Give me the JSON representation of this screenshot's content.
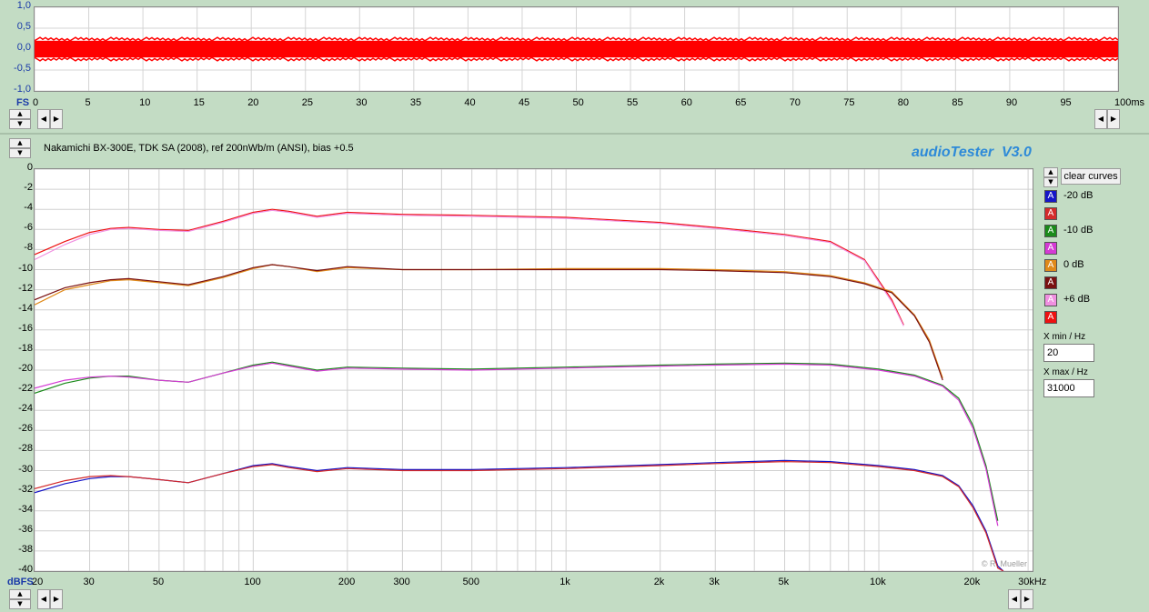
{
  "top_panel": {
    "y_tick_labels": [
      "1,0",
      "0,5",
      "0,0",
      "-0,5",
      "-1,0"
    ],
    "y_unit": "FS",
    "x_tick_labels": [
      "0",
      "5",
      "10",
      "15",
      "20",
      "25",
      "30",
      "35",
      "40",
      "45",
      "50",
      "55",
      "60",
      "65",
      "70",
      "75",
      "80",
      "85",
      "90",
      "95",
      "100ms"
    ]
  },
  "main_panel": {
    "title": "Nakamichi BX-300E, TDK SA (2008), ref 200nWb/m (ANSI), bias +0.5",
    "app_name": "audioTester  V3.0",
    "watermark": "© R. Mueller",
    "y_unit": "dBFS",
    "clear_curves_label": "clear curves",
    "x_min_label": "X min / Hz",
    "x_min_value": "20",
    "x_max_label": "X max / Hz",
    "x_max_value": "31000",
    "legend": [
      {
        "letter": "A",
        "label": "-20 dB",
        "color": "#1616c8"
      },
      {
        "letter": "A",
        "label": "",
        "color": "#d42a2a"
      },
      {
        "letter": "A",
        "label": "-10 dB",
        "color": "#1a8a1a"
      },
      {
        "letter": "A",
        "label": "",
        "color": "#d43ad4"
      },
      {
        "letter": "A",
        "label": "0 dB",
        "color": "#e08a1a"
      },
      {
        "letter": "A",
        "label": "",
        "color": "#7a1010"
      },
      {
        "letter": "A",
        "label": "+6 dB",
        "color": "#f090e0"
      },
      {
        "letter": "A",
        "label": "",
        "color": "#ee1111"
      }
    ]
  },
  "chart_data": [
    {
      "type": "area",
      "xlabel": "",
      "ylabel": "",
      "xlim": [
        0,
        100
      ],
      "ylim": [
        -1.0,
        1.0
      ],
      "y_ticks": [
        1.0,
        0.5,
        0.0,
        -0.5,
        -1.0
      ],
      "x_ticks": [
        0,
        5,
        10,
        15,
        20,
        25,
        30,
        35,
        40,
        45,
        50,
        55,
        60,
        65,
        70,
        75,
        80,
        85,
        90,
        95,
        100
      ],
      "series": [
        {
          "color": "#ff0000",
          "amplitude_envelope": [
            -0.2,
            0.2
          ]
        }
      ],
      "grid": true
    },
    {
      "type": "line",
      "xscale": "log",
      "xlim": [
        20,
        31000
      ],
      "ylim": [
        -40,
        0
      ],
      "x_ticks": [
        20,
        30,
        50,
        100,
        200,
        300,
        500,
        1000,
        2000,
        3000,
        5000,
        10000,
        20000,
        30000
      ],
      "x_tick_labels": [
        "20",
        "30",
        "50",
        "100",
        "200",
        "300",
        "500",
        "1k",
        "2k",
        "3k",
        "5k",
        "10k",
        "20k",
        "30kHz"
      ],
      "y_ticks": [
        0,
        -2,
        -4,
        -6,
        -8,
        -10,
        -12,
        -14,
        -16,
        -18,
        -20,
        -22,
        -24,
        -26,
        -28,
        -30,
        -32,
        -34,
        -36,
        -38,
        -40
      ],
      "grid": true,
      "series": [
        {
          "color": "#ee1111",
          "x": [
            20,
            25,
            30,
            35,
            40,
            50,
            62,
            80,
            100,
            115,
            130,
            160,
            200,
            300,
            500,
            1000,
            2000,
            3000,
            5000,
            7000,
            9000,
            11000,
            12000
          ],
          "y": [
            -8.5,
            -7.2,
            -6.3,
            -5.9,
            -5.8,
            -6.0,
            -6.1,
            -5.2,
            -4.3,
            -4.0,
            -4.2,
            -4.7,
            -4.3,
            -4.5,
            -4.6,
            -4.8,
            -5.3,
            -5.8,
            -6.5,
            -7.2,
            -9.0,
            -13.0,
            -15.5
          ]
        },
        {
          "color": "#f090e0",
          "x": [
            20,
            25,
            30,
            35,
            40,
            50,
            62,
            80,
            100,
            115,
            130,
            160,
            200,
            300,
            500,
            1000,
            2000,
            3000,
            5000,
            7000,
            9000,
            11000,
            12000
          ],
          "y": [
            -9.0,
            -7.5,
            -6.5,
            -6.0,
            -5.9,
            -6.1,
            -6.2,
            -5.3,
            -4.4,
            -4.1,
            -4.3,
            -4.8,
            -4.4,
            -4.6,
            -4.7,
            -4.9,
            -5.4,
            -5.9,
            -6.6,
            -7.3,
            -9.1,
            -13.2,
            -15.6
          ]
        },
        {
          "color": "#e08a1a",
          "x": [
            20,
            25,
            30,
            35,
            40,
            50,
            62,
            80,
            100,
            115,
            130,
            160,
            200,
            300,
            500,
            1000,
            2000,
            3000,
            5000,
            7000,
            9000,
            11000,
            13000,
            14500,
            16000
          ],
          "y": [
            -13.5,
            -12.0,
            -11.5,
            -11.1,
            -11.0,
            -11.3,
            -11.6,
            -10.8,
            -9.9,
            -9.5,
            -9.7,
            -10.2,
            -9.8,
            -10.0,
            -10.0,
            -9.9,
            -9.9,
            -10.0,
            -10.2,
            -10.6,
            -11.3,
            -12.2,
            -14.5,
            -17.0,
            -20.8
          ]
        },
        {
          "color": "#7a1010",
          "x": [
            20,
            25,
            30,
            35,
            40,
            50,
            62,
            80,
            100,
            115,
            130,
            160,
            200,
            300,
            500,
            1000,
            2000,
            3000,
            5000,
            7000,
            9000,
            11000,
            13000,
            14500,
            16000
          ],
          "y": [
            -13.0,
            -11.8,
            -11.3,
            -11.0,
            -10.9,
            -11.2,
            -11.5,
            -10.7,
            -9.8,
            -9.5,
            -9.7,
            -10.1,
            -9.7,
            -10.0,
            -10.0,
            -10.0,
            -10.0,
            -10.1,
            -10.3,
            -10.7,
            -11.4,
            -12.3,
            -14.6,
            -17.2,
            -21.0
          ]
        },
        {
          "color": "#1a8a1a",
          "x": [
            20,
            25,
            30,
            35,
            40,
            50,
            62,
            80,
            100,
            115,
            130,
            160,
            200,
            300,
            500,
            1000,
            2000,
            3000,
            5000,
            7000,
            10000,
            13000,
            16000,
            18000,
            20000,
            22000,
            24000
          ],
          "y": [
            -22.3,
            -21.3,
            -20.8,
            -20.6,
            -20.6,
            -21.0,
            -21.2,
            -20.3,
            -19.5,
            -19.2,
            -19.5,
            -20.0,
            -19.7,
            -19.8,
            -19.9,
            -19.7,
            -19.5,
            -19.4,
            -19.3,
            -19.4,
            -19.9,
            -20.5,
            -21.5,
            -22.8,
            -25.5,
            -29.5,
            -35.0
          ]
        },
        {
          "color": "#d43ad4",
          "x": [
            20,
            25,
            30,
            35,
            40,
            50,
            62,
            80,
            100,
            115,
            130,
            160,
            200,
            300,
            500,
            1000,
            2000,
            3000,
            5000,
            7000,
            10000,
            13000,
            16000,
            18000,
            20000,
            22000,
            24000
          ],
          "y": [
            -21.8,
            -21.0,
            -20.7,
            -20.6,
            -20.7,
            -21.0,
            -21.2,
            -20.3,
            -19.6,
            -19.3,
            -19.6,
            -20.1,
            -19.8,
            -19.9,
            -20.0,
            -19.8,
            -19.6,
            -19.5,
            -19.4,
            -19.5,
            -20.0,
            -20.6,
            -21.6,
            -23.0,
            -25.8,
            -29.8,
            -35.5
          ]
        },
        {
          "color": "#1616c8",
          "x": [
            20,
            25,
            30,
            35,
            40,
            50,
            62,
            80,
            100,
            115,
            130,
            160,
            200,
            300,
            500,
            1000,
            2000,
            3000,
            5000,
            7000,
            10000,
            13000,
            16000,
            18000,
            20000,
            22000,
            24000,
            25000
          ],
          "y": [
            -32.2,
            -31.3,
            -30.8,
            -30.6,
            -30.6,
            -30.9,
            -31.2,
            -30.3,
            -29.5,
            -29.3,
            -29.6,
            -30.0,
            -29.7,
            -29.9,
            -29.9,
            -29.7,
            -29.4,
            -29.2,
            -29.0,
            -29.1,
            -29.5,
            -29.9,
            -30.5,
            -31.5,
            -33.5,
            -36.0,
            -39.5,
            -40.0
          ]
        },
        {
          "color": "#d42a2a",
          "x": [
            20,
            25,
            30,
            35,
            40,
            50,
            62,
            80,
            100,
            115,
            130,
            160,
            200,
            300,
            500,
            1000,
            2000,
            3000,
            5000,
            7000,
            10000,
            13000,
            16000,
            18000,
            20000,
            22000,
            24000,
            25000
          ],
          "y": [
            -31.8,
            -31.0,
            -30.6,
            -30.5,
            -30.6,
            -30.9,
            -31.2,
            -30.3,
            -29.6,
            -29.4,
            -29.7,
            -30.1,
            -29.8,
            -30.0,
            -30.0,
            -29.8,
            -29.5,
            -29.3,
            -29.1,
            -29.2,
            -29.6,
            -30.0,
            -30.6,
            -31.6,
            -33.7,
            -36.2,
            -39.7,
            -40.0
          ]
        }
      ]
    }
  ]
}
